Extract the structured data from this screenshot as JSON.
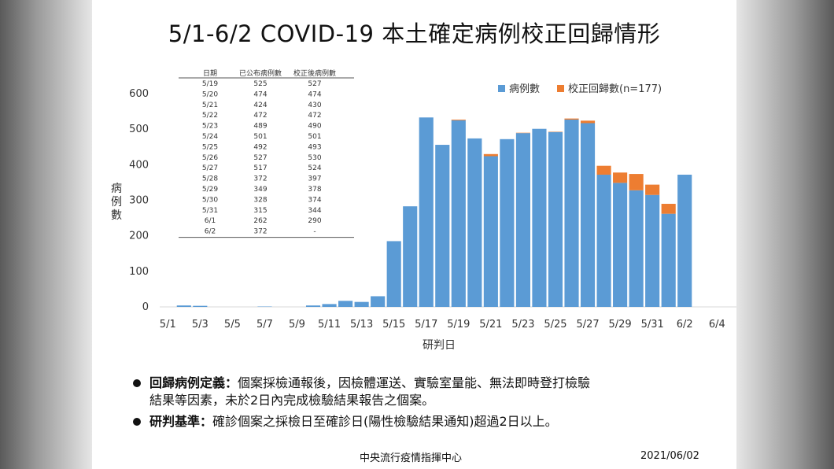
{
  "title": "5/1-6/2 COVID-19 本土確定病例校正回歸情形",
  "colors": {
    "cases": "#5B9BD5",
    "backlog": "#ED7D31",
    "axis": "#d9d9d9",
    "text": "#333333"
  },
  "chart_data": {
    "type": "bar",
    "stacked": true,
    "xlabel": "研判日",
    "ylabel": "病例數",
    "ylim": [
      0,
      600
    ],
    "yticks": [
      0,
      100,
      200,
      300,
      400,
      500,
      600
    ],
    "xticks": [
      "5/1",
      "5/3",
      "5/5",
      "5/7",
      "5/9",
      "5/11",
      "5/13",
      "5/15",
      "5/17",
      "5/19",
      "5/21",
      "5/23",
      "5/25",
      "5/27",
      "5/29",
      "5/31",
      "6/2",
      "6/4"
    ],
    "categories": [
      "5/1",
      "5/2",
      "5/3",
      "5/4",
      "5/5",
      "5/6",
      "5/7",
      "5/8",
      "5/9",
      "5/10",
      "5/11",
      "5/12",
      "5/13",
      "5/14",
      "5/15",
      "5/16",
      "5/17",
      "5/18",
      "5/19",
      "5/20",
      "5/21",
      "5/22",
      "5/23",
      "5/24",
      "5/25",
      "5/26",
      "5/27",
      "5/28",
      "5/29",
      "5/30",
      "5/31",
      "6/1",
      "6/2"
    ],
    "series": [
      {
        "name": "病例數",
        "values": [
          0,
          4,
          3,
          0,
          0,
          0,
          1,
          0,
          0,
          4,
          8,
          17,
          14,
          30,
          185,
          283,
          533,
          456,
          525,
          474,
          424,
          472,
          489,
          501,
          492,
          527,
          517,
          372,
          349,
          328,
          315,
          262,
          372
        ]
      },
      {
        "name": "校正回歸數(n=177)",
        "values": [
          0,
          0,
          0,
          0,
          0,
          0,
          0,
          0,
          0,
          0,
          0,
          0,
          0,
          0,
          0,
          0,
          0,
          0,
          2,
          0,
          6,
          0,
          1,
          0,
          1,
          3,
          7,
          25,
          29,
          46,
          29,
          28,
          0
        ]
      }
    ],
    "legend_position": "top-right",
    "table": {
      "headers": [
        "日期",
        "已公布病例數",
        "校正後病例數"
      ],
      "rows": [
        [
          "5/19",
          "525",
          "527"
        ],
        [
          "5/20",
          "474",
          "474"
        ],
        [
          "5/21",
          "424",
          "430"
        ],
        [
          "5/22",
          "472",
          "472"
        ],
        [
          "5/23",
          "489",
          "490"
        ],
        [
          "5/24",
          "501",
          "501"
        ],
        [
          "5/25",
          "492",
          "493"
        ],
        [
          "5/26",
          "527",
          "530"
        ],
        [
          "5/27",
          "517",
          "524"
        ],
        [
          "5/28",
          "372",
          "397"
        ],
        [
          "5/29",
          "349",
          "378"
        ],
        [
          "5/30",
          "328",
          "374"
        ],
        [
          "5/31",
          "315",
          "344"
        ],
        [
          "6/1",
          "262",
          "290"
        ],
        [
          "6/2",
          "372",
          "-"
        ]
      ]
    }
  },
  "notes": [
    {
      "term": "回歸病例定義：",
      "line1": "個案採檢通報後，因檢體運送、實驗室量能、無法即時登打檢驗",
      "line2": "結果等因素，未於2日內完成檢驗結果報告之個案。"
    },
    {
      "term": "研判基準：",
      "line1": "確診個案之採檢日至確診日(陽性檢驗結果通知)超過2日以上。"
    }
  ],
  "footer": {
    "org": "中央流行疫情指揮中心",
    "date": "2021/06/02"
  }
}
